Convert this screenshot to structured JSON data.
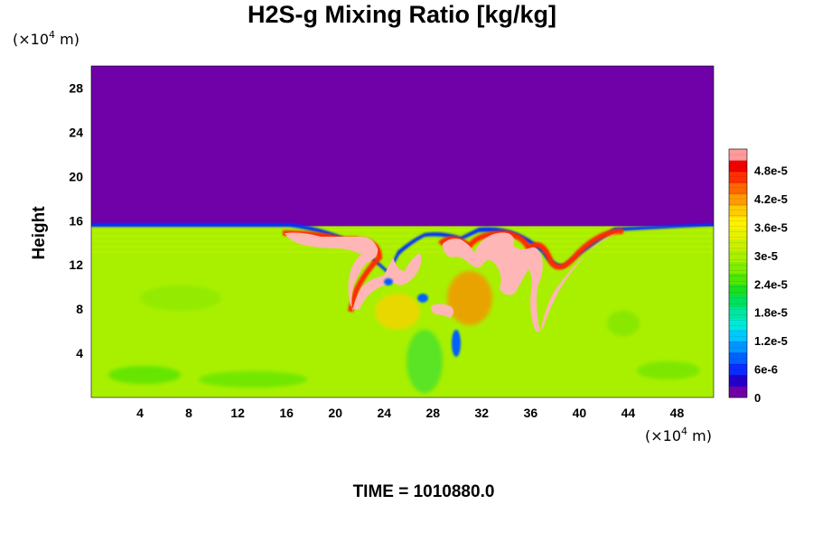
{
  "chart_data": {
    "type": "heatmap",
    "title": "H2S-g Mixing Ratio [kg/kg]",
    "ylabel": "Height",
    "x_unit": {
      "prefix": "(×10",
      "exp": "4",
      "suffix": " m)"
    },
    "y_unit": {
      "prefix": "(×10",
      "exp": "4",
      "suffix": " m)"
    },
    "xlim": [
      0,
      51
    ],
    "ylim": [
      0,
      30
    ],
    "x_ticks": [
      4,
      8,
      12,
      16,
      20,
      24,
      28,
      32,
      36,
      40,
      44,
      48
    ],
    "y_ticks": [
      4,
      8,
      12,
      16,
      20,
      24,
      28
    ],
    "colorbar": {
      "ticks": [
        {
          "value": 0,
          "label": "0"
        },
        {
          "value": 6e-06,
          "label": "6e-6"
        },
        {
          "value": 1.2e-05,
          "label": "1.2e-5"
        },
        {
          "value": 1.8e-05,
          "label": "1.8e-5"
        },
        {
          "value": 2.4e-05,
          "label": "2.4e-5"
        },
        {
          "value": 3e-05,
          "label": "3e-5"
        },
        {
          "value": 3.6e-05,
          "label": "3.6e-5"
        },
        {
          "value": 4.2e-05,
          "label": "4.2e-5"
        },
        {
          "value": 4.8e-05,
          "label": "4.8e-5"
        }
      ],
      "range": [
        0,
        5.25e-05
      ],
      "colors": [
        "#7000a8",
        "#2200cc",
        "#0a2cff",
        "#0060ff",
        "#0096ff",
        "#00c8ff",
        "#00e8d8",
        "#00e6a0",
        "#00e060",
        "#18e020",
        "#50e600",
        "#80ee00",
        "#a8f000",
        "#c8f000",
        "#e6f200",
        "#fff000",
        "#ffcc00",
        "#ff9c00",
        "#ff6800",
        "#ff3000",
        "#f00000",
        "#ff9a9a"
      ]
    },
    "field_description": {
      "upper_layer_value": 0,
      "lower_layer_value": 3.15e-05,
      "interface_height": 15.5,
      "plumes": "high-concentration pink plumes between x≈17 and x≈44, height 6–15"
    }
  },
  "footer": {
    "time_label": "TIME = 1010880.0"
  },
  "colors": {
    "upper": "#7000a8",
    "lower": "#a8f000",
    "plume": "#ffb6b6"
  }
}
